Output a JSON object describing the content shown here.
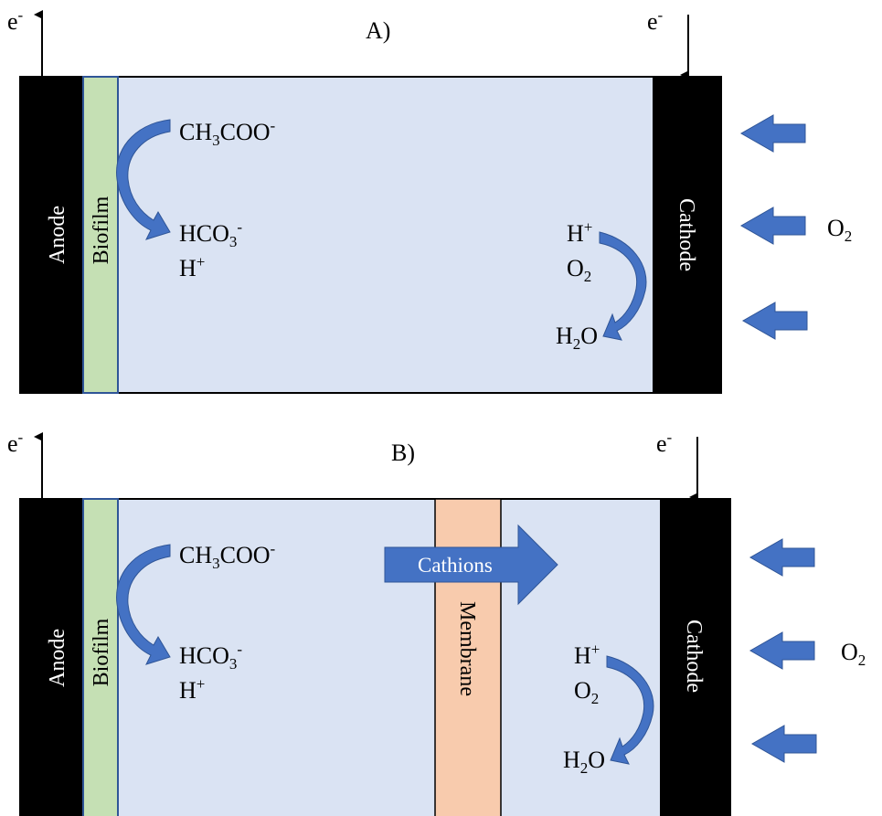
{
  "colors": {
    "chamber": "#dae3f3",
    "electrode": "#000000",
    "biofilm": "#c5e0b4",
    "membrane": "#f8cbad",
    "arrow": "#4472c4",
    "arrow_outline": "#2f5597"
  },
  "panel_a": {
    "title": "A)",
    "anode_label": "Anode",
    "biofilm_label": "Biofilm",
    "cathode_label": "Cathode",
    "electron_left": "e",
    "electron_right": "e",
    "electron_sup": "-",
    "substrate": {
      "prefix": "CH",
      "sub1": "3",
      "mid": "COO",
      "sup": "-"
    },
    "bicarbonate": {
      "prefix": "HCO",
      "sub": "3",
      "sup": "-"
    },
    "proton_left": {
      "base": "H",
      "sup": "+"
    },
    "proton_right": {
      "base": "H",
      "sup": "+"
    },
    "oxygen_inner": {
      "base": "O",
      "sub": "2"
    },
    "water": {
      "pre": "H",
      "sub": "2",
      "post": "O"
    },
    "oxygen_outer": {
      "base": "O",
      "sub": "2"
    }
  },
  "panel_b": {
    "title": "B)",
    "anode_label": "Anode",
    "biofilm_label": "Biofilm",
    "membrane_label": "Membrane",
    "cathode_label": "Cathode",
    "cations_label": "Cathions",
    "electron_left": "e",
    "electron_right": "e",
    "electron_sup": "-",
    "substrate": {
      "prefix": "CH",
      "sub1": "3",
      "mid": "COO",
      "sup": "-"
    },
    "bicarbonate": {
      "prefix": "HCO",
      "sub": "3",
      "sup": "-"
    },
    "proton_left": {
      "base": "H",
      "sup": "+"
    },
    "proton_right": {
      "base": "H",
      "sup": "+"
    },
    "oxygen_inner": {
      "base": "O",
      "sub": "2"
    },
    "water": {
      "pre": "H",
      "sub": "2",
      "post": "O"
    },
    "oxygen_outer": {
      "base": "O",
      "sub": "2"
    }
  }
}
